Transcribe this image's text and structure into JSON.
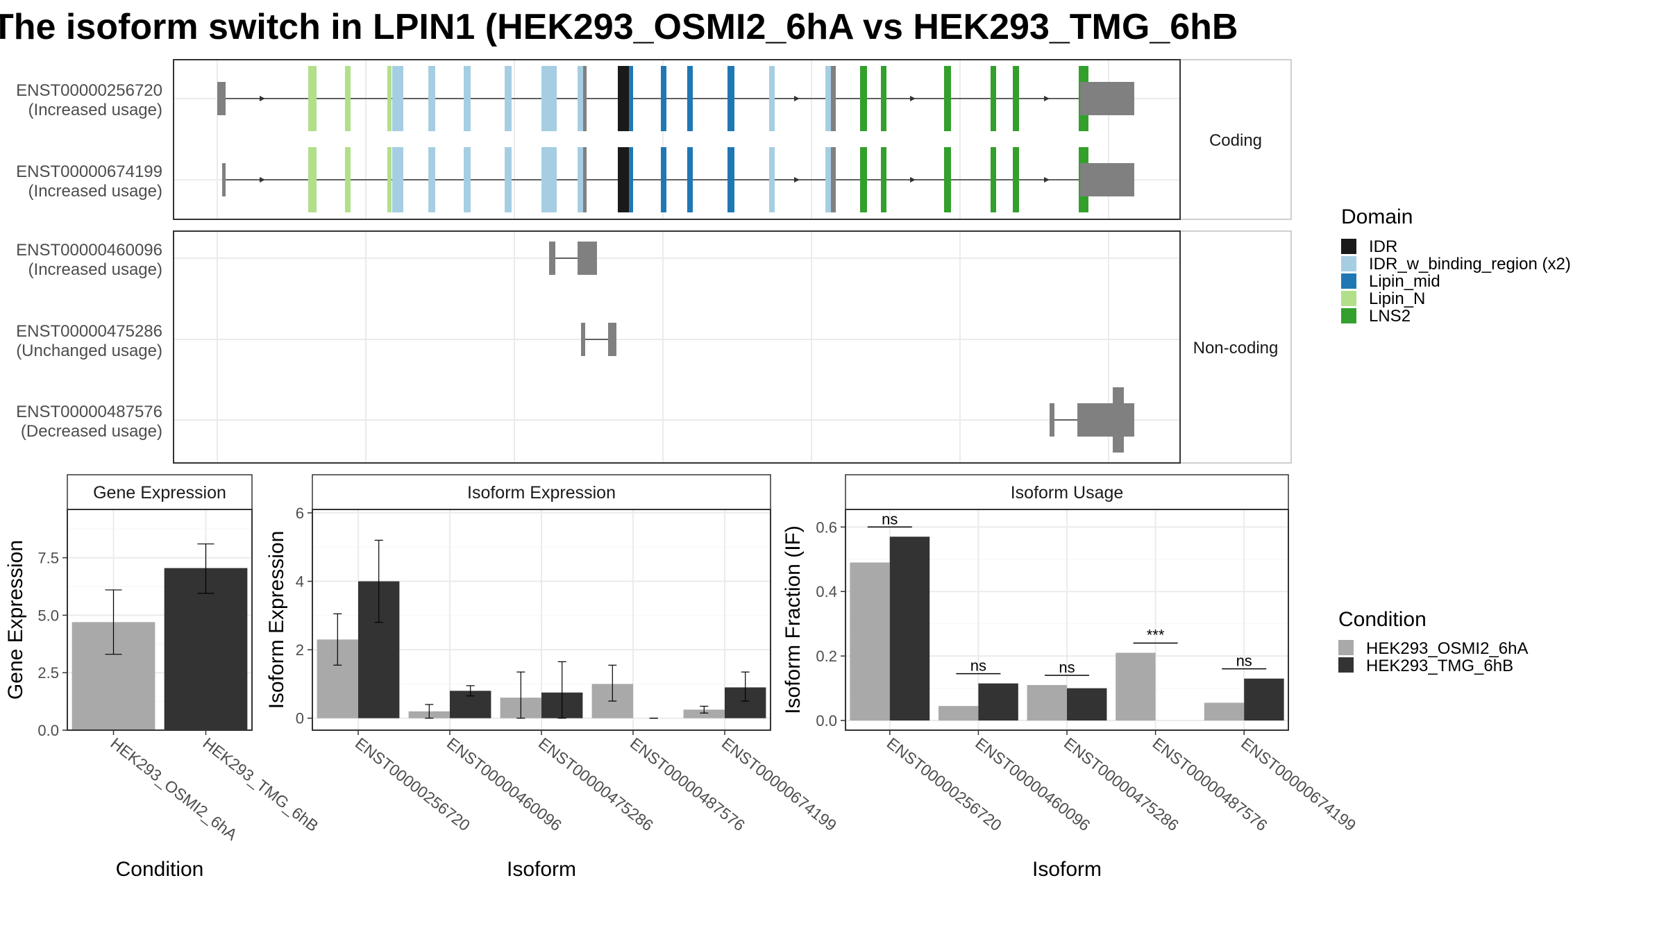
{
  "title": "The isoform switch in LPIN1 (HEK293_OSMI2_6hA vs HEK293_TMG_6hB",
  "isoform_structure": {
    "coding_strip_label": "Coding",
    "noncoding_strip_label": "Non-coding",
    "coding_transcripts": [
      {
        "id": "ENST00000256720",
        "usage": "(Increased usage)"
      },
      {
        "id": "ENST00000674199",
        "usage": "(Increased usage)"
      }
    ],
    "noncoding_transcripts": [
      {
        "id": "ENST00000460096",
        "usage": "(Increased usage)"
      },
      {
        "id": "ENST00000475286",
        "usage": "(Unchanged usage)"
      },
      {
        "id": "ENST00000487576",
        "usage": "(Decreased usage)"
      }
    ]
  },
  "domain_legend": {
    "title": "Domain",
    "items": [
      {
        "label": "IDR",
        "color": "#1a1a1a"
      },
      {
        "label": "IDR_w_binding_region (x2)",
        "color": "#a6cee3"
      },
      {
        "label": "Lipin_mid",
        "color": "#1f78b4"
      },
      {
        "label": "Lipin_N",
        "color": "#b2df8a"
      },
      {
        "label": "LNS2",
        "color": "#33a02c"
      }
    ]
  },
  "condition_legend": {
    "title": "Condition",
    "items": [
      {
        "label": "HEK293_OSMI2_6hA",
        "color": "#a9a9a9"
      },
      {
        "label": "HEK293_TMG_6hB",
        "color": "#333333"
      }
    ]
  },
  "chart_data": [
    {
      "type": "bar",
      "title": "Gene Expression",
      "xlabel": "Condition",
      "ylabel": "Gene Expression",
      "ylim": [
        0,
        9.6
      ],
      "yticks": [
        "0.0",
        "2.5",
        "5.0",
        "7.5"
      ],
      "categories": [
        "HEK293_OSMI2_6hA",
        "HEK293_TMG_6hB"
      ],
      "values": [
        4.7,
        7.05
      ],
      "errors": [
        [
          3.3,
          6.1
        ],
        [
          5.95,
          8.1
        ]
      ],
      "colors": [
        "#a9a9a9",
        "#333333"
      ],
      "grid": true
    },
    {
      "type": "bar",
      "title": "Isoform Expression",
      "xlabel": "Isoform",
      "ylabel": "Isoform Expression",
      "ylim": [
        -0.35,
        6.1
      ],
      "yticks": [
        "0",
        "2",
        "4",
        "6"
      ],
      "categories": [
        "ENST00000256720",
        "ENST00000460096",
        "ENST00000475286",
        "ENST00000487576",
        "ENST00000674199"
      ],
      "series": [
        {
          "name": "HEK293_OSMI2_6hA",
          "values": [
            2.3,
            0.2,
            0.6,
            1.0,
            0.25
          ],
          "errors": [
            [
              1.55,
              3.05
            ],
            [
              0.0,
              0.4
            ],
            [
              0.0,
              1.35
            ],
            [
              0.5,
              1.55
            ],
            [
              0.15,
              0.35
            ]
          ]
        },
        {
          "name": "HEK293_TMG_6hB",
          "values": [
            4.0,
            0.8,
            0.75,
            0.0,
            0.9
          ],
          "errors": [
            [
              2.8,
              5.2
            ],
            [
              0.65,
              0.95
            ],
            [
              0.0,
              1.65
            ],
            [
              0.0,
              0.0
            ],
            [
              0.5,
              1.35
            ]
          ]
        }
      ],
      "grid": true
    },
    {
      "type": "bar",
      "title": "Isoform Usage",
      "xlabel": "Isoform",
      "ylabel": "Isoform Fraction (IF)",
      "ylim": [
        -0.03,
        0.6545
      ],
      "yticks": [
        "0.0",
        "0.2",
        "0.4",
        "0.6"
      ],
      "categories": [
        "ENST00000256720",
        "ENST00000460096",
        "ENST00000475286",
        "ENST00000487576",
        "ENST00000674199"
      ],
      "series": [
        {
          "name": "HEK293_OSMI2_6hA",
          "values": [
            0.49,
            0.045,
            0.11,
            0.21,
            0.055
          ]
        },
        {
          "name": "HEK293_TMG_6hB",
          "values": [
            0.57,
            0.115,
            0.1,
            0.0,
            0.13
          ]
        }
      ],
      "significance": [
        "ns",
        "ns",
        "ns",
        "***",
        "ns"
      ],
      "grid": true
    }
  ]
}
